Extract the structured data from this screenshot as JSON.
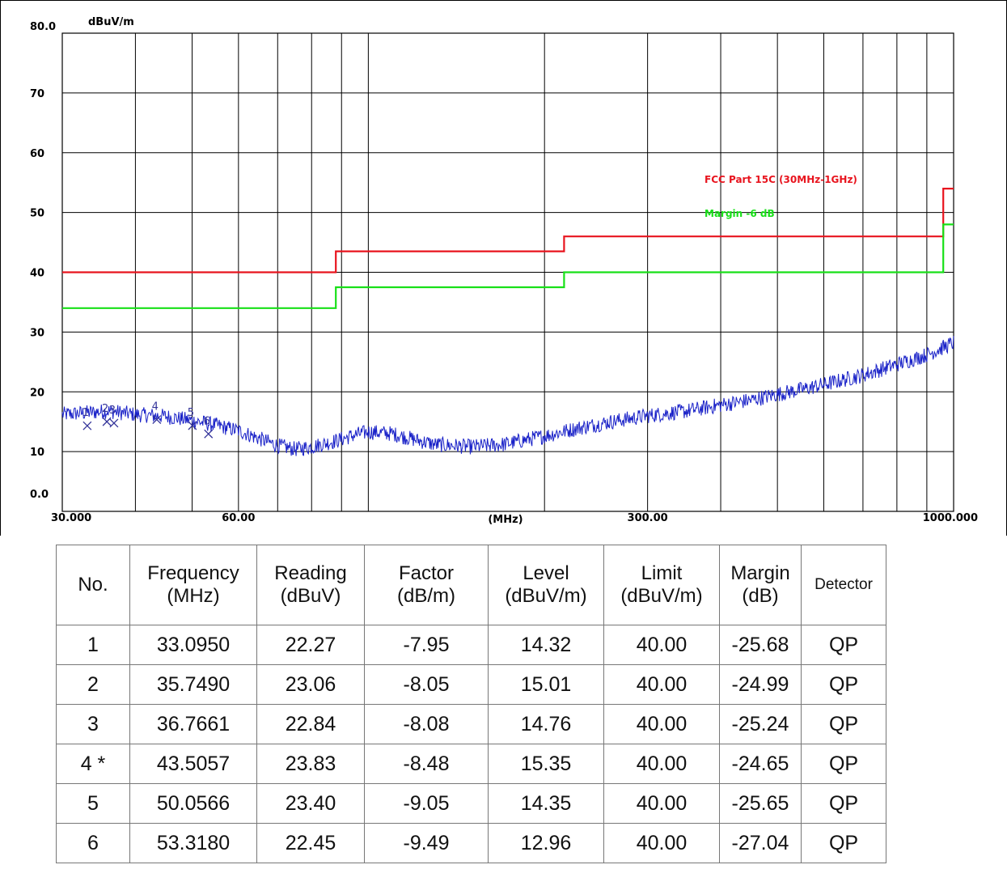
{
  "chart_data": {
    "type": "line",
    "ylabel": "dBuV/m",
    "xlabel": "(MHz)",
    "xscale": "log",
    "xlim": [
      30,
      1000
    ],
    "ylim": [
      0,
      80
    ],
    "y_ticks": [
      "80.0",
      "70",
      "60",
      "50",
      "40",
      "30",
      "20",
      "10",
      "0.0"
    ],
    "y_tick_values": [
      80,
      70,
      60,
      50,
      40,
      30,
      20,
      10,
      0
    ],
    "x_ticks": [
      "30.000",
      "60.00",
      "300.00",
      "1000.000"
    ],
    "x_tick_values": [
      30,
      60,
      300,
      1000
    ],
    "grid": true,
    "legend_placement": "top-right",
    "colors": {
      "limit": "#e8141e",
      "margin": "#18e018",
      "trace": "#1a22c8",
      "marker": "#333399"
    },
    "series": [
      {
        "name": "FCC Part 15C (30MHz-1GHz)",
        "color": "#e8141e",
        "x": [
          30,
          88,
          88,
          216,
          216,
          960,
          960,
          1000
        ],
        "y": [
          40,
          40,
          43.5,
          43.5,
          46,
          46,
          54,
          54
        ]
      },
      {
        "name": "Margin -6 dB",
        "color": "#18e018",
        "x": [
          30,
          88,
          88,
          216,
          216,
          960,
          960,
          1000
        ],
        "y": [
          34,
          34,
          37.5,
          37.5,
          40,
          40,
          48,
          48
        ]
      },
      {
        "color": "#1a22c8",
        "x": [
          30,
          33,
          36,
          40,
          45,
          50,
          55,
          60,
          65,
          70,
          75,
          80,
          88,
          95,
          100,
          110,
          120,
          130,
          150,
          170,
          200,
          230,
          260,
          300,
          350,
          400,
          450,
          500,
          550,
          600,
          700,
          800,
          900,
          1000
        ],
        "y": [
          16.2,
          16.5,
          16.8,
          16.2,
          15.9,
          15.2,
          14.4,
          13.5,
          12.2,
          11.0,
          10.4,
          10.8,
          11.8,
          12.8,
          13.3,
          13.0,
          12.0,
          11.2,
          10.8,
          11.2,
          12.6,
          14.0,
          15.0,
          16.0,
          16.8,
          17.8,
          18.6,
          19.6,
          20.4,
          21.2,
          22.8,
          24.6,
          26.2,
          28.2
        ]
      }
    ],
    "markers": [
      {
        "label": "1",
        "x": 33.095,
        "y": 14.32
      },
      {
        "label": "2",
        "x": 35.749,
        "y": 15.01
      },
      {
        "label": "3",
        "x": 36.7661,
        "y": 14.76
      },
      {
        "label": "4",
        "x": 43.5057,
        "y": 15.35
      },
      {
        "label": "5",
        "x": 50.0566,
        "y": 14.35
      },
      {
        "label": "6",
        "x": 53.318,
        "y": 12.96
      }
    ]
  },
  "table": {
    "headers": [
      [
        "No."
      ],
      [
        "Frequency",
        "(MHz)"
      ],
      [
        "Reading",
        "(dBuV)"
      ],
      [
        "Factor",
        "(dB/m)"
      ],
      [
        "Level",
        "(dBuV/m)"
      ],
      [
        "Limit",
        "(dBuV/m)"
      ],
      [
        "Margin",
        "(dB)"
      ],
      [
        "Detector"
      ]
    ],
    "rows": [
      [
        "1",
        "33.0950",
        "22.27",
        "-7.95",
        "14.32",
        "40.00",
        "-25.68",
        "QP"
      ],
      [
        "2",
        "35.7490",
        "23.06",
        "-8.05",
        "15.01",
        "40.00",
        "-24.99",
        "QP"
      ],
      [
        "3",
        "36.7661",
        "22.84",
        "-8.08",
        "14.76",
        "40.00",
        "-25.24",
        "QP"
      ],
      [
        "4  *",
        "43.5057",
        "23.83",
        "-8.48",
        "15.35",
        "40.00",
        "-24.65",
        "QP"
      ],
      [
        "5",
        "50.0566",
        "23.40",
        "-9.05",
        "14.35",
        "40.00",
        "-25.65",
        "QP"
      ],
      [
        "6",
        "53.3180",
        "22.45",
        "-9.49",
        "12.96",
        "40.00",
        "-27.04",
        "QP"
      ]
    ]
  }
}
